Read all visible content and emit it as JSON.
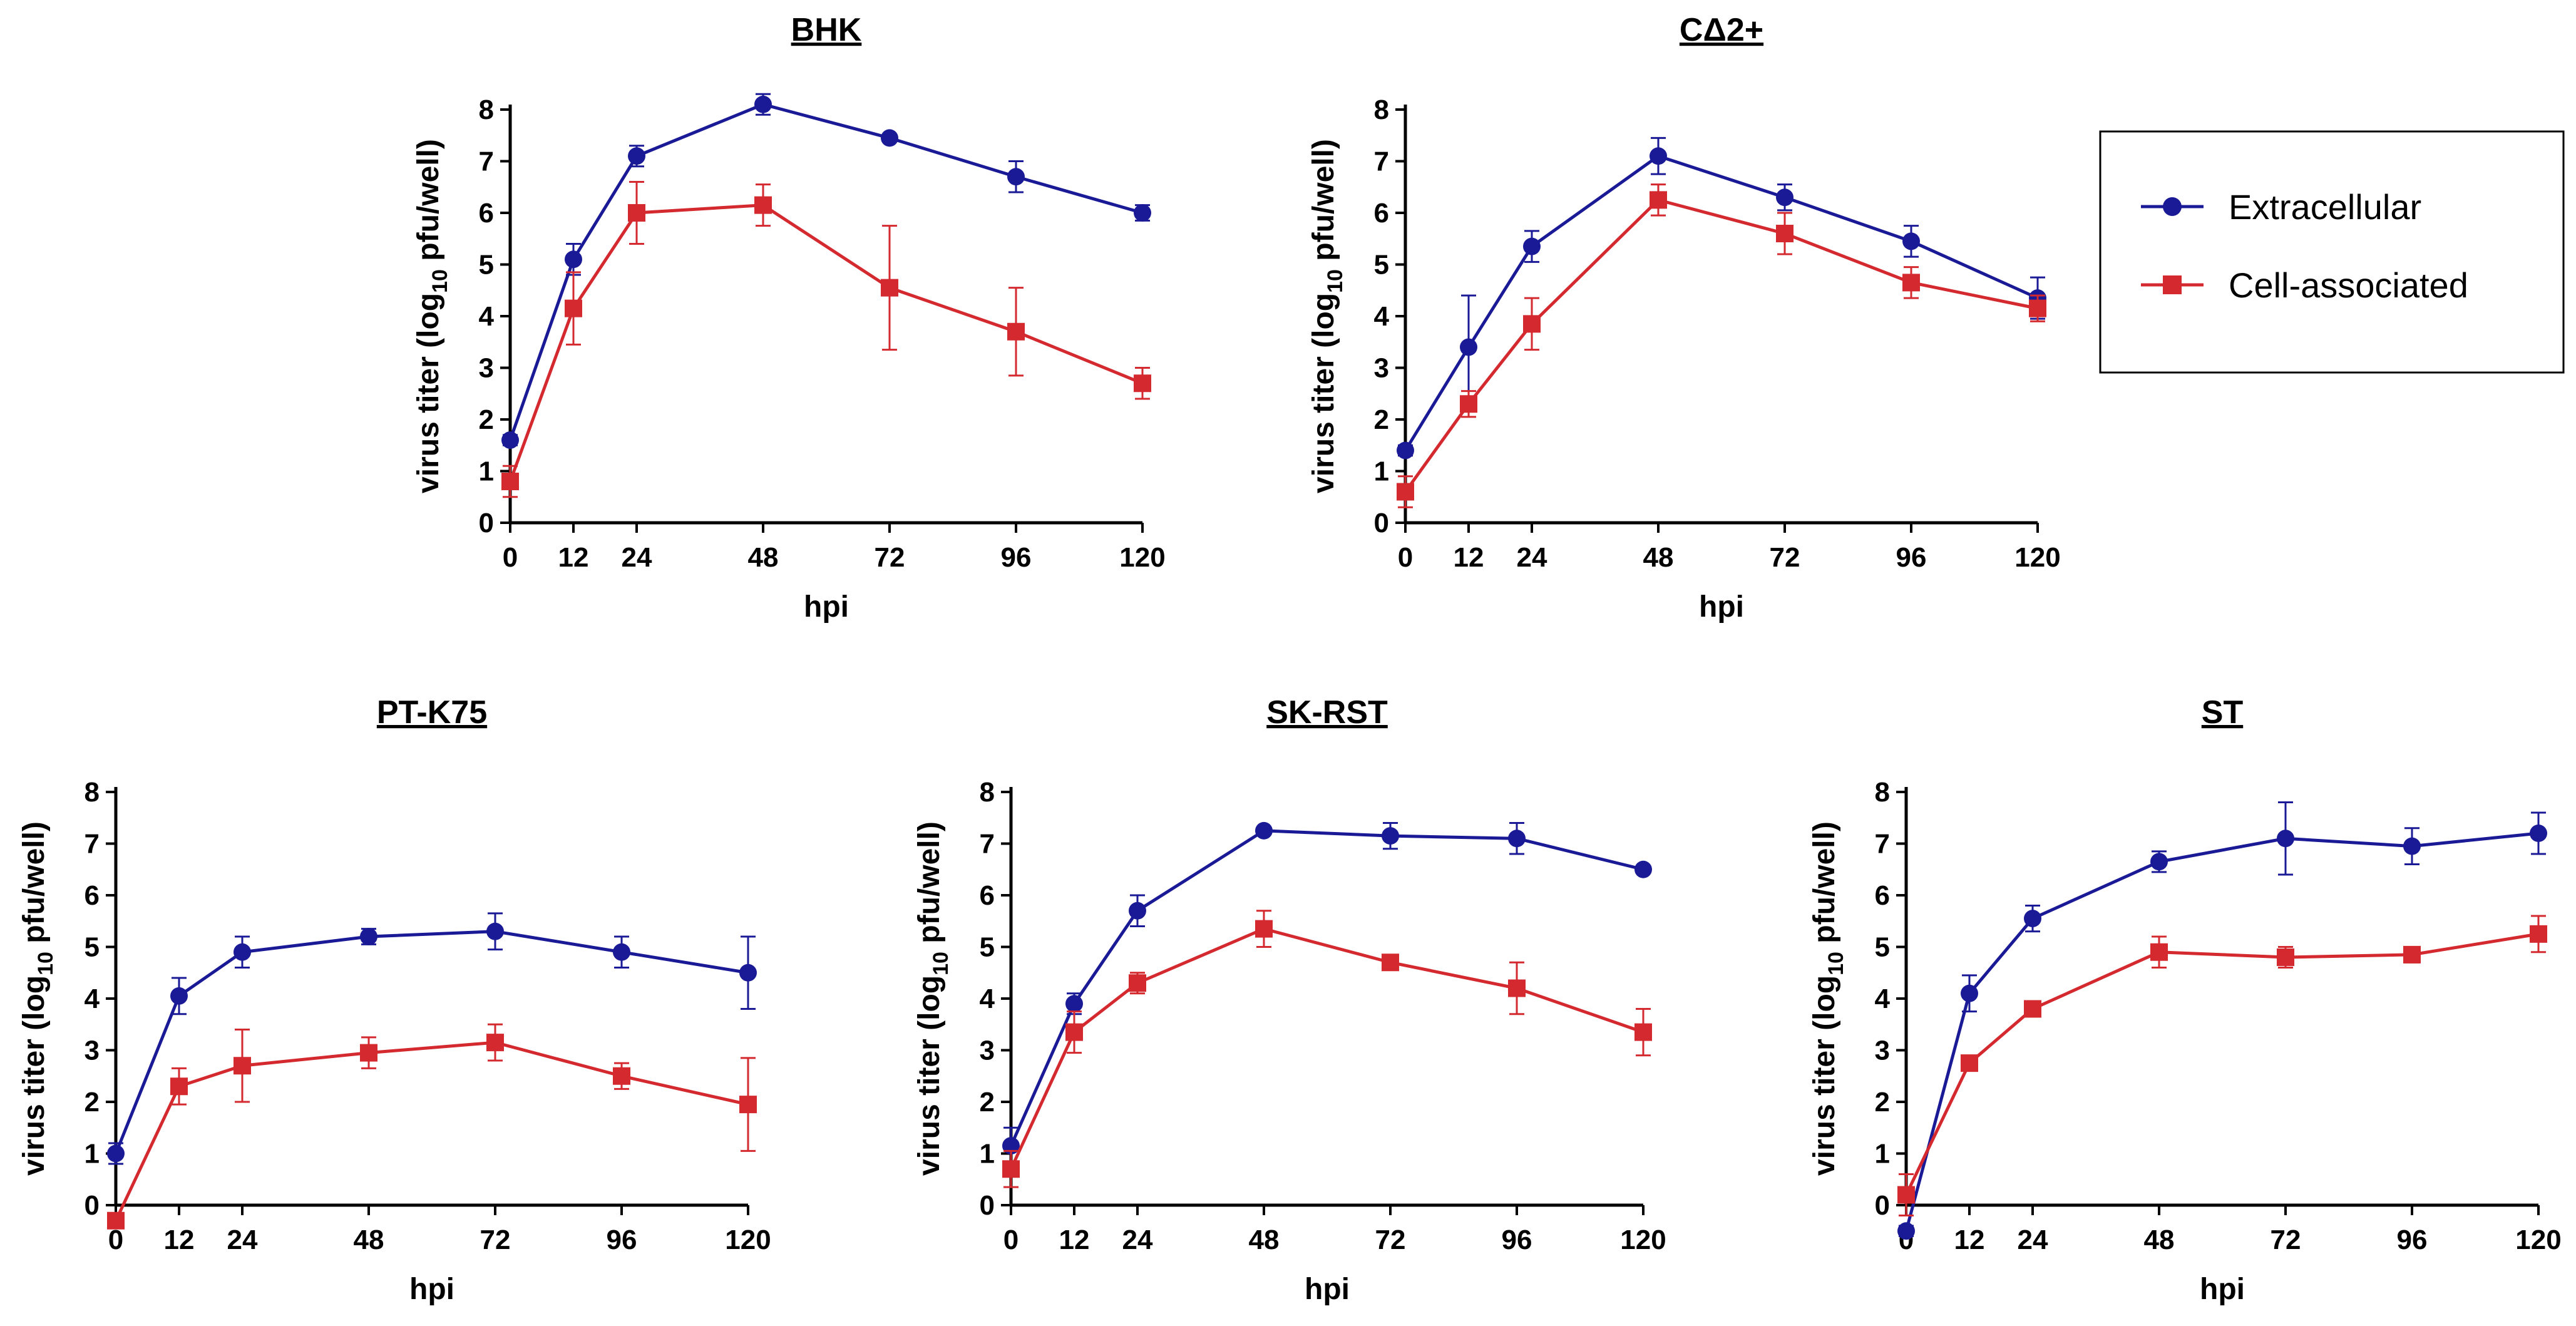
{
  "colors": {
    "extracellular": "#1a1a96",
    "cell_associated": "#d3292f",
    "axis": "#000000"
  },
  "legend": [
    {
      "label": "Extracellular",
      "marker": "circle",
      "color": "#1a1a96"
    },
    {
      "label": "Cell-associated",
      "marker": "square",
      "color": "#d3292f"
    }
  ],
  "chart_data": [
    {
      "type": "line",
      "title": "BHK",
      "xlabel": "hpi",
      "ylabel_prefix": "virus titer (log",
      "ylabel_sub": "10",
      "ylabel_suffix": " pfu/well)",
      "x": [
        0,
        12,
        24,
        48,
        72,
        96,
        120
      ],
      "xticks": [
        "0",
        "12",
        "24",
        "48",
        "72",
        "96",
        "120"
      ],
      "yticks": [
        "0",
        "1",
        "2",
        "3",
        "4",
        "5",
        "6",
        "7",
        "8"
      ],
      "ylim": [
        0,
        8
      ],
      "xlim": [
        0,
        120
      ],
      "series": [
        {
          "name": "Extracellular",
          "values": [
            1.6,
            5.1,
            7.1,
            8.1,
            7.45,
            6.7,
            6.0
          ],
          "errors": [
            0.1,
            0.3,
            0.2,
            0.2,
            0.05,
            0.3,
            0.15
          ]
        },
        {
          "name": "Cell-associated",
          "values": [
            0.8,
            4.15,
            6.0,
            6.15,
            4.55,
            3.7,
            2.7
          ],
          "errors": [
            0.3,
            0.7,
            0.6,
            0.4,
            1.2,
            0.85,
            0.3
          ]
        }
      ]
    },
    {
      "type": "line",
      "title": "CΔ2+",
      "xlabel": "hpi",
      "ylabel_prefix": "virus titer (log",
      "ylabel_sub": "10",
      "ylabel_suffix": " pfu/well)",
      "x": [
        0,
        12,
        24,
        48,
        72,
        96,
        120
      ],
      "xticks": [
        "0",
        "12",
        "24",
        "48",
        "72",
        "96",
        "120"
      ],
      "yticks": [
        "0",
        "1",
        "2",
        "3",
        "4",
        "5",
        "6",
        "7",
        "8"
      ],
      "ylim": [
        0,
        8
      ],
      "xlim": [
        0,
        120
      ],
      "series": [
        {
          "name": "Extracellular",
          "values": [
            1.4,
            3.4,
            5.35,
            7.1,
            6.3,
            5.45,
            4.35
          ],
          "errors": [
            0.1,
            1.0,
            0.3,
            0.35,
            0.25,
            0.3,
            0.4
          ]
        },
        {
          "name": "Cell-associated",
          "values": [
            0.6,
            2.3,
            3.85,
            6.25,
            5.6,
            4.65,
            4.15
          ],
          "errors": [
            0.3,
            0.25,
            0.5,
            0.3,
            0.4,
            0.3,
            0.25
          ]
        }
      ]
    },
    {
      "type": "line",
      "title": "PT-K75",
      "xlabel": "hpi",
      "ylabel_prefix": "virus titer (log",
      "ylabel_sub": "10",
      "ylabel_suffix": " pfu/well)",
      "x": [
        0,
        12,
        24,
        48,
        72,
        96,
        120
      ],
      "xticks": [
        "0",
        "12",
        "24",
        "48",
        "72",
        "96",
        "120"
      ],
      "yticks": [
        "0",
        "1",
        "2",
        "3",
        "4",
        "5",
        "6",
        "7",
        "8"
      ],
      "ylim": [
        0,
        8
      ],
      "xlim": [
        0,
        120
      ],
      "series": [
        {
          "name": "Extracellular",
          "values": [
            1.0,
            4.05,
            4.9,
            5.2,
            5.3,
            4.9,
            4.5
          ],
          "errors": [
            0.2,
            0.35,
            0.3,
            0.15,
            0.35,
            0.3,
            0.7
          ]
        },
        {
          "name": "Cell-associated",
          "values": [
            -0.3,
            2.3,
            2.7,
            2.95,
            3.15,
            2.5,
            1.95
          ],
          "errors": [
            0.1,
            0.35,
            0.7,
            0.3,
            0.35,
            0.25,
            0.9
          ]
        }
      ]
    },
    {
      "type": "line",
      "title": "SK-RST",
      "xlabel": "hpi",
      "ylabel_prefix": "virus titer (log",
      "ylabel_sub": "10",
      "ylabel_suffix": " pfu/well)",
      "x": [
        0,
        12,
        24,
        48,
        72,
        96,
        120
      ],
      "xticks": [
        "0",
        "12",
        "24",
        "48",
        "72",
        "96",
        "120"
      ],
      "yticks": [
        "0",
        "1",
        "2",
        "3",
        "4",
        "5",
        "6",
        "7",
        "8"
      ],
      "ylim": [
        0,
        8
      ],
      "xlim": [
        0,
        120
      ],
      "series": [
        {
          "name": "Extracellular",
          "values": [
            1.15,
            3.9,
            5.7,
            7.25,
            7.15,
            7.1,
            6.5
          ],
          "errors": [
            0.35,
            0.2,
            0.3,
            0.05,
            0.25,
            0.3,
            0.05
          ]
        },
        {
          "name": "Cell-associated",
          "values": [
            0.7,
            3.35,
            4.3,
            5.35,
            4.7,
            4.2,
            3.35
          ],
          "errors": [
            0.35,
            0.4,
            0.2,
            0.35,
            0.1,
            0.5,
            0.45
          ]
        }
      ]
    },
    {
      "type": "line",
      "title": "ST",
      "xlabel": "hpi",
      "ylabel_prefix": "virus titer (log",
      "ylabel_sub": "10",
      "ylabel_suffix": " pfu/well)",
      "x": [
        0,
        12,
        24,
        48,
        72,
        96,
        120
      ],
      "xticks": [
        "0",
        "12",
        "24",
        "48",
        "72",
        "96",
        "120"
      ],
      "yticks": [
        "0",
        "1",
        "2",
        "3",
        "4",
        "5",
        "6",
        "7",
        "8"
      ],
      "ylim": [
        0,
        8
      ],
      "xlim": [
        0,
        120
      ],
      "series": [
        {
          "name": "Extracellular",
          "values": [
            -0.5,
            4.1,
            5.55,
            6.65,
            7.1,
            6.95,
            7.2
          ],
          "errors": [
            0.1,
            0.35,
            0.25,
            0.2,
            0.7,
            0.35,
            0.4
          ]
        },
        {
          "name": "Cell-associated",
          "values": [
            0.2,
            2.75,
            3.8,
            4.9,
            4.8,
            4.85,
            5.25
          ],
          "errors": [
            0.4,
            0.1,
            0.1,
            0.3,
            0.2,
            0.15,
            0.35
          ]
        }
      ]
    }
  ]
}
